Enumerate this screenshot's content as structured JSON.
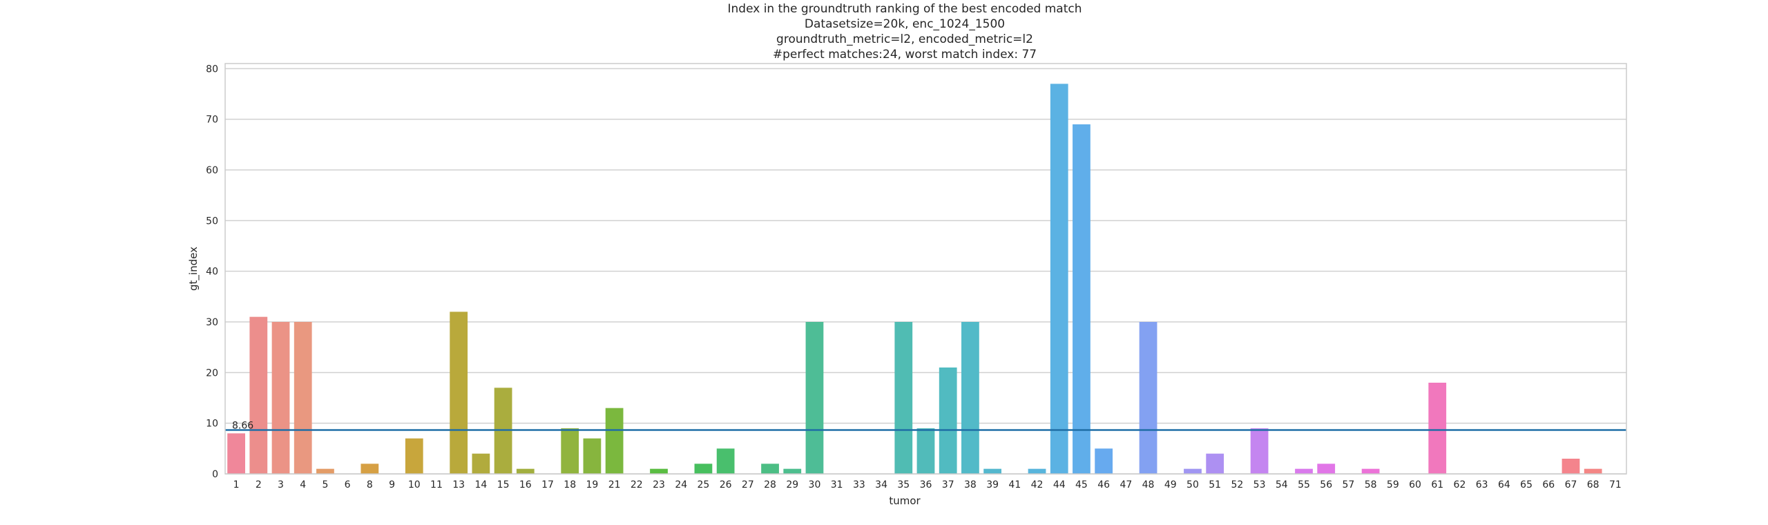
{
  "chart_data": {
    "type": "bar",
    "title_lines": [
      "Index in the groundtruth ranking of the best encoded match",
      "Datasetsize=20k, enc_1024_1500",
      "groundtruth_metric=l2, encoded_metric=l2",
      "#perfect matches:24, worst match index: 77"
    ],
    "xlabel": "tumor",
    "ylabel": "gt_index",
    "ylim": [
      0,
      81
    ],
    "yticks": [
      0,
      10,
      20,
      30,
      40,
      50,
      60,
      70,
      80
    ],
    "grid": "horizontal",
    "categories": [
      "1",
      "2",
      "3",
      "4",
      "5",
      "6",
      "8",
      "9",
      "10",
      "11",
      "13",
      "14",
      "15",
      "16",
      "17",
      "18",
      "19",
      "21",
      "22",
      "23",
      "24",
      "25",
      "26",
      "27",
      "28",
      "29",
      "30",
      "31",
      "33",
      "34",
      "35",
      "36",
      "37",
      "38",
      "39",
      "41",
      "42",
      "44",
      "45",
      "46",
      "47",
      "48",
      "49",
      "50",
      "51",
      "52",
      "53",
      "54",
      "55",
      "56",
      "57",
      "58",
      "59",
      "60",
      "61",
      "62",
      "63",
      "64",
      "65",
      "66",
      "67",
      "68",
      "71"
    ],
    "values": [
      8,
      31,
      30,
      30,
      1,
      0,
      2,
      0,
      7,
      0,
      32,
      4,
      17,
      1,
      0,
      9,
      7,
      13,
      0,
      1,
      0,
      2,
      5,
      0,
      2,
      1,
      30,
      0,
      0,
      0,
      30,
      9,
      21,
      30,
      1,
      0,
      1,
      77,
      69,
      5,
      0,
      30,
      0,
      1,
      4,
      0,
      9,
      0,
      1,
      2,
      0,
      1,
      0,
      0,
      18,
      0,
      0,
      0,
      0,
      0,
      3,
      1,
      0
    ],
    "colors": [
      "#f0879a",
      "#ec8e8c",
      "#eb9386",
      "#e99880",
      "#e39c67",
      "#db9f5a",
      "#d6a044",
      "#cfa23d",
      "#c8a63c",
      "#c1a83b",
      "#b9a93b",
      "#b1ab3d",
      "#aaad3e",
      "#a2af3f",
      "#9ab13f",
      "#91b43e",
      "#87b53e",
      "#7bb83e",
      "#6cba3f",
      "#5abd42",
      "#4bbf4c",
      "#47bf5e",
      "#49bf6d",
      "#4bbf79",
      "#4cbe84",
      "#4dbe8e",
      "#4ebd96",
      "#4ebd9e",
      "#4fbda5",
      "#4fbcac",
      "#50bcb3",
      "#51bbba",
      "#51bbc1",
      "#52bac8",
      "#54b8ce",
      "#56b7d5",
      "#58b5dc",
      "#5bb2e3",
      "#60aeea",
      "#67aaef",
      "#74a6f1",
      "#83a1f2",
      "#929cf2",
      "#a096f2",
      "#ad90f2",
      "#b98af1",
      "#c485f0",
      "#cf7fee",
      "#d97aec",
      "#e176e7",
      "#e874e0",
      "#ec73d8",
      "#ef74cf",
      "#f076c6",
      "#f178bd",
      "#f27ab4",
      "#f37cab",
      "#f37ea3",
      "#f4809a",
      "#f48293",
      "#f4848c",
      "#f48685",
      "#f48880"
    ],
    "reference_line": {
      "value": 8.66,
      "label": "8.66",
      "color": "#1f6ea6"
    }
  }
}
